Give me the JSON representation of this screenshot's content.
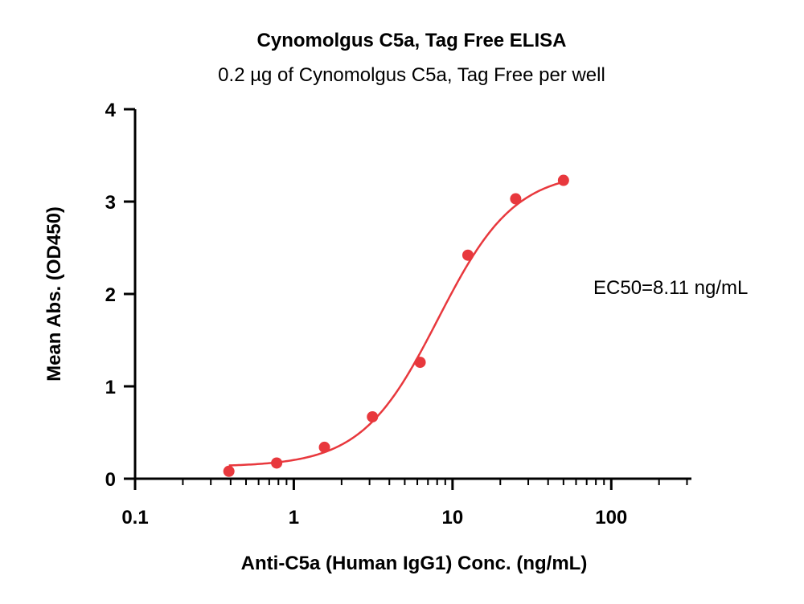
{
  "chart_data": {
    "type": "scatter",
    "title": "Cynomolgus C5a, Tag Free ELISA",
    "subtitle": "0.2 µg of Cynomolgus C5a, Tag Free per well",
    "xlabel": "Anti-C5a (Human IgG1) Conc. (ng/mL)",
    "ylabel": "Mean Abs. (OD450)",
    "x_scale": "log",
    "xlim": [
      0.1,
      320
    ],
    "ylim": [
      0,
      4
    ],
    "x_ticks": [
      "0.1",
      "1",
      "10",
      "100"
    ],
    "x_tick_values": [
      0.1,
      1,
      10,
      100
    ],
    "y_ticks": [
      "0",
      "1",
      "2",
      "3",
      "4"
    ],
    "y_tick_values": [
      0,
      1,
      2,
      3,
      4
    ],
    "grid": false,
    "series": [
      {
        "x": [
          0.39,
          0.78,
          1.56,
          3.13,
          6.25,
          12.5,
          25,
          50
        ],
        "y": [
          0.08,
          0.17,
          0.34,
          0.67,
          1.26,
          2.42,
          3.03,
          3.23
        ],
        "color": "#e8383d"
      }
    ],
    "fit": {
      "type": "4PL",
      "bottom": 0.13,
      "top": 3.33,
      "ec50": 8.11,
      "hill": 1.8,
      "x_range": [
        0.39,
        50
      ],
      "color": "#e8383d"
    },
    "annotation": "EC50=8.11 ng/mL"
  }
}
